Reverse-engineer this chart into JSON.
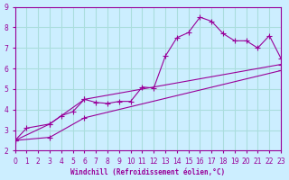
{
  "xlabel": "Windchill (Refroidissement éolien,°C)",
  "bg_color": "#cceeff",
  "line_color": "#990099",
  "grid_color": "#aadddd",
  "xlim": [
    0,
    23
  ],
  "ylim": [
    2,
    9
  ],
  "xticks": [
    0,
    1,
    2,
    3,
    4,
    5,
    6,
    7,
    8,
    9,
    10,
    11,
    12,
    13,
    14,
    15,
    16,
    17,
    18,
    19,
    20,
    21,
    22,
    23
  ],
  "yticks": [
    2,
    3,
    4,
    5,
    6,
    7,
    8,
    9
  ],
  "series1_x": [
    0,
    1,
    3,
    4,
    5,
    6,
    7,
    8,
    9,
    10,
    11,
    12,
    13,
    14,
    15,
    16,
    17,
    18,
    19,
    20,
    21,
    22,
    23
  ],
  "series1_y": [
    2.5,
    3.1,
    3.3,
    3.7,
    3.9,
    4.5,
    4.35,
    4.3,
    4.4,
    4.4,
    5.1,
    5.05,
    6.6,
    7.5,
    7.75,
    8.5,
    8.3,
    7.7,
    7.35,
    7.35,
    7.0,
    7.6,
    6.5
  ],
  "series2_x": [
    0,
    3,
    6,
    23
  ],
  "series2_y": [
    2.5,
    3.3,
    4.5,
    6.2
  ],
  "series3_x": [
    0,
    3,
    6,
    23
  ],
  "series3_y": [
    2.5,
    2.65,
    3.6,
    5.9
  ]
}
